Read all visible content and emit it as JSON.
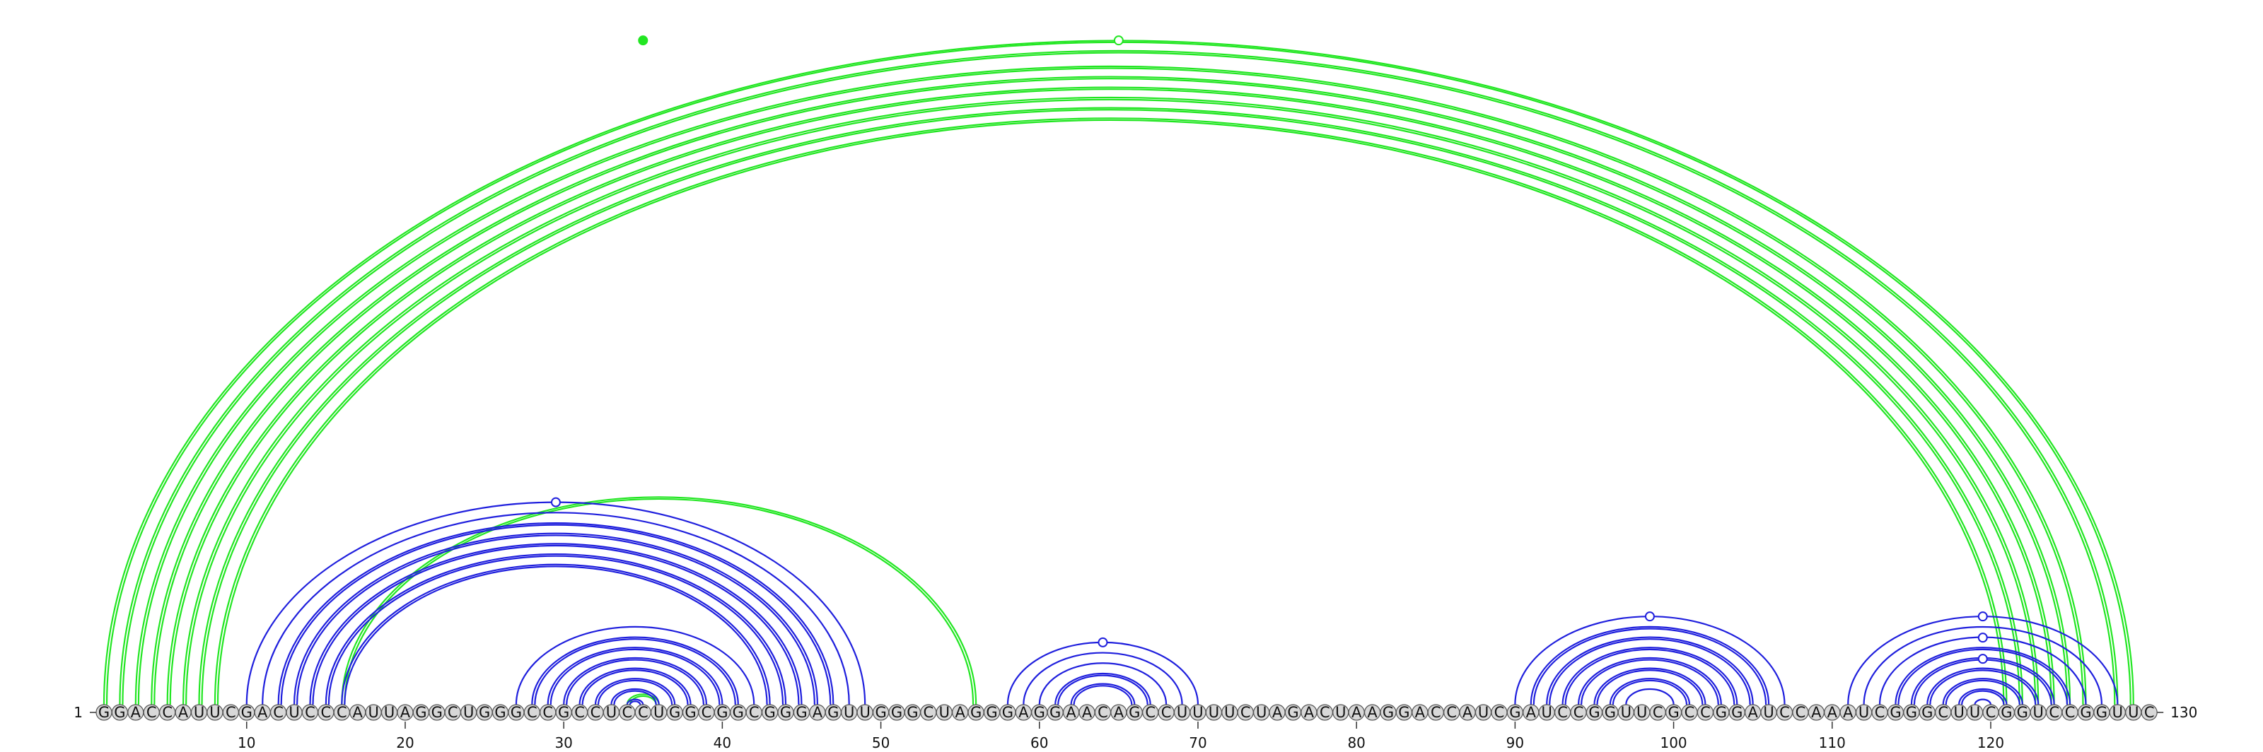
{
  "sequence": "GGACCAUUCGACUCCCAUUAGGCUGGGCCGCCUCCUGGCGGCGGGAGUUGGGCUAGGGAGGAACAGCCUUUUCUAGACUAAGGACCAUCGAUCCGGUUCGCCGGAUCCAAAUCGGGCUUCGGUCCGGUUC",
  "length": 130,
  "start_label": "1",
  "end_label": "130",
  "ticks": [
    10,
    20,
    30,
    40,
    50,
    60,
    70,
    80,
    90,
    100,
    110,
    120
  ],
  "colors": {
    "blue_arcs": "#1f1fdd",
    "green_arcs": "#22e622",
    "nucleotide_fill": "#d8d8d8",
    "nucleotide_stroke": "#555555",
    "text": "#111111"
  },
  "blue_stems": [
    {
      "i": 10,
      "j": 49,
      "length": 1
    },
    {
      "i": 11,
      "j": 48,
      "length": 1
    },
    {
      "i": 12,
      "j": 47,
      "length": 2,
      "double": true
    },
    {
      "i": 14,
      "j": 45,
      "length": 3,
      "double": true
    },
    {
      "i": 27,
      "j": 42,
      "length": 1
    },
    {
      "i": 28,
      "j": 41,
      "length": 7,
      "double": true
    },
    {
      "i": 58,
      "j": 70,
      "length": 1
    },
    {
      "i": 59,
      "j": 69,
      "length": 2
    },
    {
      "i": 61,
      "j": 67,
      "length": 2,
      "double": true
    },
    {
      "i": 90,
      "j": 107,
      "length": 1
    },
    {
      "i": 91,
      "j": 106,
      "length": 6,
      "double": true
    },
    {
      "i": 97,
      "j": 100,
      "length": 1
    },
    {
      "i": 111,
      "j": 128,
      "length": 1
    },
    {
      "i": 112,
      "j": 127,
      "length": 2
    },
    {
      "i": 114,
      "j": 125,
      "length": 5,
      "double": true
    },
    {
      "i": 119,
      "j": 120,
      "length": 1
    }
  ],
  "green_stems": [
    {
      "i": 1,
      "j": 129,
      "length": 1,
      "double": true
    },
    {
      "i": 2,
      "j": 128,
      "length": 1,
      "double": true
    },
    {
      "i": 3,
      "j": 126,
      "length": 2,
      "double": true
    },
    {
      "i": 5,
      "j": 124,
      "length": 2,
      "double": true
    },
    {
      "i": 7,
      "j": 122,
      "length": 2,
      "double": true
    },
    {
      "i": 16,
      "j": 56,
      "length": 1,
      "double": true
    },
    {
      "i": 34,
      "j": 36,
      "length": 1,
      "double": true
    }
  ],
  "markers": [
    {
      "pos": 29.5,
      "color": "blue",
      "filled": false,
      "label": "hairpin-marker-1"
    },
    {
      "pos": 64,
      "color": "blue",
      "filled": false,
      "label": "hairpin-marker-2"
    },
    {
      "pos": 98.5,
      "color": "blue",
      "filled": false,
      "label": "hairpin-marker-3"
    },
    {
      "pos": 119.5,
      "color": "blue",
      "filled": false,
      "label": "hairpin-marker-4"
    },
    {
      "pos": 119.5,
      "color": "blue",
      "filled": false,
      "label": "hairpin-marker-5"
    },
    {
      "pos": 119.5,
      "color": "blue",
      "filled": false,
      "label": "hairpin-marker-6"
    },
    {
      "pos": 35,
      "color": "green",
      "filled": true,
      "label": "hairpin-marker-7"
    },
    {
      "pos": 65,
      "color": "green",
      "filled": false,
      "label": "hairpin-marker-8"
    }
  ]
}
